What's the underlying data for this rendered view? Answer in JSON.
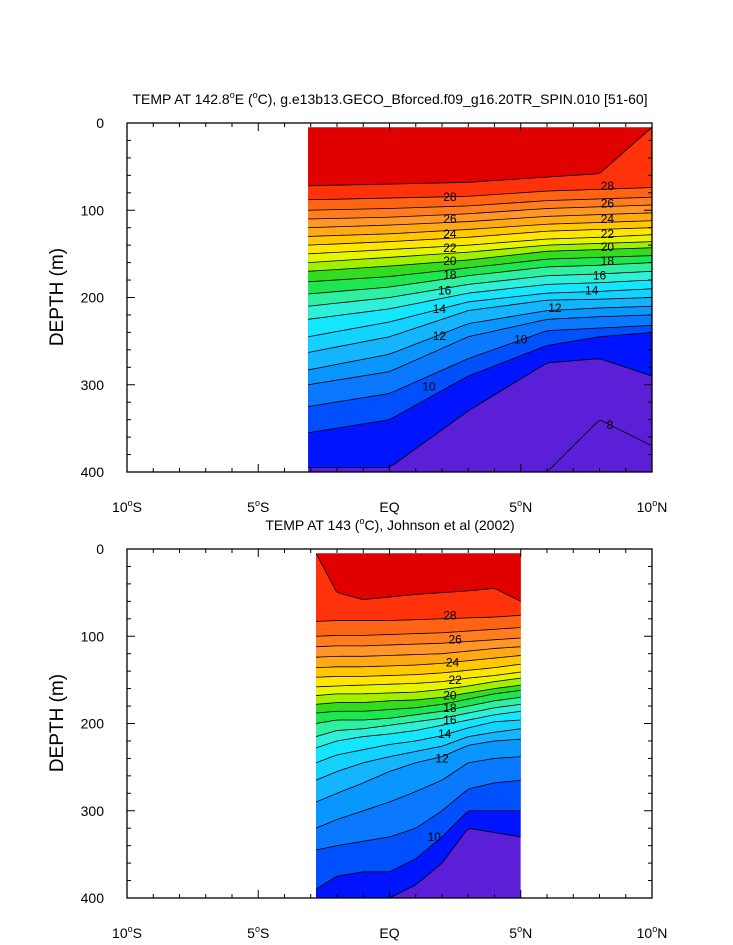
{
  "chart_data": [
    {
      "type": "contour",
      "title": "TEMP AT 142.8°E (°C), g.e13b13.GECO_Bforced.f09_g16.20TR_SPIN.010 [51-60]",
      "title_parts": {
        "prefix": "TEMP AT 142.8",
        "deg": "o",
        "middle": "E (",
        "unit_deg": "o",
        "suffix": "C), g.e13b13.GECO_Bforced.f09_g16.20TR_SPIN.010 [51-60]"
      },
      "xlabel": "",
      "ylabel": "DEPTH (m)",
      "xlim": [
        -10,
        10
      ],
      "ylim": [
        0,
        400
      ],
      "x_ticks": [
        -10,
        -5,
        0,
        5,
        10
      ],
      "x_tick_labels": [
        {
          "num": "10",
          "dir": "S"
        },
        {
          "num": "5",
          "dir": "S"
        },
        {
          "num": "EQ",
          "dir": ""
        },
        {
          "num": "5",
          "dir": "N"
        },
        {
          "num": "10",
          "dir": "N"
        }
      ],
      "y_ticks": [
        0,
        100,
        200,
        300,
        400
      ],
      "y_tick_labels": [
        "0",
        "100",
        "200",
        "300",
        "400"
      ],
      "data_x_range": [
        -3.1,
        10
      ],
      "depth_range": [
        5,
        400
      ],
      "contour_interval": 1,
      "levels": [
        8,
        9,
        10,
        11,
        12,
        13,
        14,
        15,
        16,
        17,
        18,
        19,
        20,
        21,
        22,
        23,
        24,
        25,
        26,
        27,
        28,
        29
      ],
      "isotherm_depths": {
        "x": [
          -3.1,
          0,
          3,
          6,
          8,
          10
        ],
        "8": [
          null,
          null,
          null,
          400,
          340,
          370
        ],
        "9": [
          395,
          395,
          330,
          275,
          270,
          290
        ],
        "10": [
          355,
          340,
          290,
          255,
          245,
          240
        ],
        "11": [
          325,
          310,
          270,
          238,
          235,
          232
        ],
        "12": [
          300,
          285,
          245,
          225,
          222,
          220
        ],
        "13": [
          283,
          265,
          230,
          215,
          212,
          210
        ],
        "14": [
          263,
          245,
          215,
          203,
          202,
          200
        ],
        "15": [
          245,
          228,
          205,
          195,
          193,
          190
        ],
        "16": [
          225,
          213,
          195,
          185,
          183,
          180
        ],
        "17": [
          210,
          200,
          185,
          175,
          173,
          170
        ],
        "18": [
          196,
          188,
          175,
          165,
          163,
          160
        ],
        "19": [
          182,
          176,
          166,
          156,
          154,
          152
        ],
        "20": [
          170,
          164,
          157,
          147,
          145,
          143
        ],
        "21": [
          160,
          154,
          148,
          140,
          138,
          136
        ],
        "22": [
          150,
          145,
          140,
          133,
          131,
          128
        ],
        "23": [
          140,
          136,
          131,
          124,
          122,
          120
        ],
        "24": [
          130,
          127,
          122,
          116,
          114,
          112
        ],
        "25": [
          120,
          117,
          113,
          107,
          105,
          103
        ],
        "26": [
          110,
          108,
          104,
          98,
          96,
          94
        ],
        "27": [
          100,
          98,
          95,
          89,
          87,
          85
        ],
        "28": [
          88,
          86,
          84,
          78,
          76,
          74
        ],
        "29": [
          72,
          70,
          68,
          62,
          58,
          5
        ]
      },
      "contour_labels": [
        {
          "text": "28",
          "x": 2.3,
          "y": 85
        },
        {
          "text": "28",
          "x": 8.3,
          "y": 72
        },
        {
          "text": "26",
          "x": 2.3,
          "y": 110
        },
        {
          "text": "26",
          "x": 8.3,
          "y": 92
        },
        {
          "text": "24",
          "x": 2.3,
          "y": 127
        },
        {
          "text": "24",
          "x": 8.3,
          "y": 110
        },
        {
          "text": "22",
          "x": 2.3,
          "y": 143
        },
        {
          "text": "22",
          "x": 8.3,
          "y": 127
        },
        {
          "text": "20",
          "x": 2.3,
          "y": 158
        },
        {
          "text": "20",
          "x": 8.3,
          "y": 142
        },
        {
          "text": "18",
          "x": 2.3,
          "y": 174
        },
        {
          "text": "18",
          "x": 8.3,
          "y": 158
        },
        {
          "text": "16",
          "x": 2.1,
          "y": 192
        },
        {
          "text": "16",
          "x": 8.0,
          "y": 175
        },
        {
          "text": "14",
          "x": 1.9,
          "y": 213
        },
        {
          "text": "14",
          "x": 7.7,
          "y": 192
        },
        {
          "text": "12",
          "x": 1.9,
          "y": 244
        },
        {
          "text": "12",
          "x": 6.3,
          "y": 212
        },
        {
          "text": "10",
          "x": 5.0,
          "y": 248
        },
        {
          "text": "10",
          "x": 1.5,
          "y": 302
        },
        {
          "text": "8",
          "x": 8.4,
          "y": 346
        }
      ]
    },
    {
      "type": "contour",
      "title": "TEMP AT 143 (°C), Johnson et al (2002)",
      "title_parts": {
        "prefix": "TEMP AT 143 (",
        "unit_deg": "o",
        "suffix": "C), Johnson et al (2002)"
      },
      "xlabel": "",
      "ylabel": "DEPTH (m)",
      "xlim": [
        -10,
        10
      ],
      "ylim": [
        0,
        400
      ],
      "x_ticks": [
        -10,
        -5,
        0,
        5,
        10
      ],
      "x_tick_labels": [
        {
          "num": "10",
          "dir": "S"
        },
        {
          "num": "5",
          "dir": "S"
        },
        {
          "num": "EQ",
          "dir": ""
        },
        {
          "num": "5",
          "dir": "N"
        },
        {
          "num": "10",
          "dir": "N"
        }
      ],
      "y_ticks": [
        0,
        100,
        200,
        300,
        400
      ],
      "y_tick_labels": [
        "0",
        "100",
        "200",
        "300",
        "400"
      ],
      "data_x_range": [
        -2.8,
        5
      ],
      "depth_range": [
        5,
        400
      ],
      "contour_interval": 1,
      "levels": [
        9,
        10,
        11,
        12,
        13,
        14,
        15,
        16,
        17,
        18,
        19,
        20,
        21,
        22,
        23,
        24,
        25,
        26,
        27,
        28,
        29
      ],
      "isotherm_depths": {
        "x": [
          -2.8,
          -2,
          -1,
          0,
          1,
          2,
          3,
          4,
          5
        ],
        "9": [
          null,
          null,
          null,
          400,
          385,
          360,
          320,
          325,
          330
        ],
        "10": [
          390,
          375,
          370,
          370,
          355,
          330,
          300,
          300,
          300
        ],
        "11": [
          345,
          340,
          335,
          330,
          320,
          300,
          275,
          268,
          265
        ],
        "12": [
          320,
          310,
          300,
          290,
          278,
          265,
          245,
          240,
          238
        ],
        "13": [
          290,
          280,
          268,
          255,
          245,
          238,
          225,
          220,
          218
        ],
        "14": [
          265,
          255,
          245,
          238,
          232,
          226,
          215,
          210,
          206
        ],
        "15": [
          245,
          236,
          230,
          224,
          220,
          214,
          205,
          198,
          196
        ],
        "16": [
          228,
          220,
          215,
          212,
          208,
          202,
          196,
          190,
          186
        ],
        "17": [
          215,
          208,
          206,
          202,
          198,
          194,
          188,
          182,
          178
        ],
        "18": [
          200,
          196,
          196,
          194,
          190,
          186,
          180,
          174,
          170
        ],
        "19": [
          188,
          186,
          186,
          184,
          182,
          178,
          172,
          166,
          162
        ],
        "20": [
          178,
          176,
          176,
          174,
          173,
          170,
          165,
          160,
          156
        ],
        "21": [
          168,
          166,
          166,
          165,
          164,
          161,
          157,
          152,
          148
        ],
        "22": [
          158,
          157,
          156,
          155,
          154,
          152,
          148,
          145,
          141
        ],
        "23": [
          147,
          146,
          146,
          145,
          144,
          142,
          139,
          136,
          132
        ],
        "24": [
          136,
          135,
          135,
          134,
          133,
          131,
          128,
          125,
          122
        ],
        "25": [
          124,
          123,
          123,
          122,
          121,
          120,
          117,
          114,
          112
        ],
        "26": [
          112,
          111,
          111,
          110,
          109,
          108,
          106,
          104,
          102
        ],
        "27": [
          100,
          99,
          99,
          98,
          97,
          96,
          94,
          92,
          90
        ],
        "28": [
          83,
          82,
          82,
          82,
          81,
          80,
          79,
          78,
          76
        ],
        "29": [
          5,
          50,
          58,
          55,
          52,
          50,
          48,
          45,
          60
        ]
      },
      "contour_labels": [
        {
          "text": "28",
          "x": 2.3,
          "y": 76
        },
        {
          "text": "26",
          "x": 2.5,
          "y": 104
        },
        {
          "text": "24",
          "x": 2.4,
          "y": 130
        },
        {
          "text": "22",
          "x": 2.5,
          "y": 150
        },
        {
          "text": "20",
          "x": 2.3,
          "y": 168
        },
        {
          "text": "18",
          "x": 2.3,
          "y": 182
        },
        {
          "text": "16",
          "x": 2.3,
          "y": 196
        },
        {
          "text": "14",
          "x": 2.1,
          "y": 212
        },
        {
          "text": "12",
          "x": 2.0,
          "y": 240
        },
        {
          "text": "10",
          "x": 1.7,
          "y": 330
        }
      ]
    }
  ],
  "colors": {
    "8": "#5a1fd6",
    "9": "#0014ff",
    "10": "#0050ff",
    "11": "#0a78ff",
    "12": "#0a96ff",
    "13": "#14b4ff",
    "14": "#14d2ff",
    "15": "#14e6ff",
    "16": "#2ef0d8",
    "17": "#2ef0a0",
    "18": "#1ee650",
    "19": "#32dc1e",
    "20": "#a0f000",
    "21": "#e6f500",
    "22": "#ffe600",
    "23": "#ffc800",
    "24": "#ffaa14",
    "25": "#ff9628",
    "26": "#ff7d1e",
    "27": "#ff6414",
    "28": "#ff320a",
    "29": "#ff0000",
    "30": "#e00000"
  }
}
